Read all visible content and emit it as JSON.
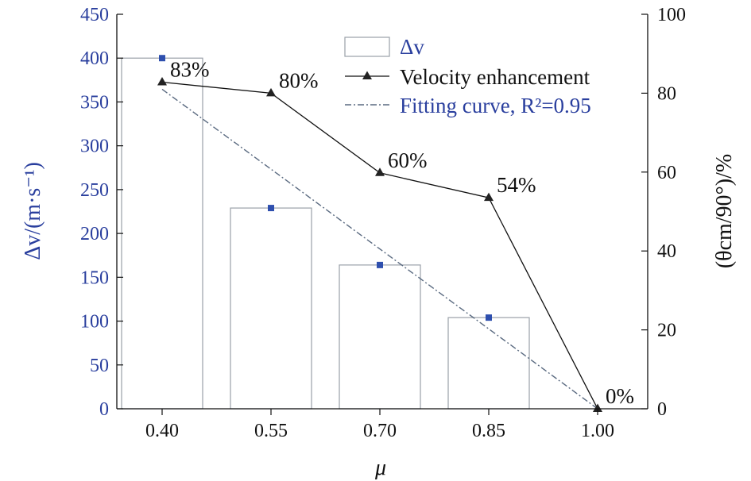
{
  "chart_data": {
    "type": "bar+line",
    "x_axis": {
      "label": "μ",
      "categories": [
        "0.40",
        "0.55",
        "0.70",
        "0.85",
        "1.00"
      ]
    },
    "y_left": {
      "label": "Δv/(m·s⁻¹)",
      "min": 0,
      "max": 450,
      "step": 50,
      "ticks": [
        "0",
        "50",
        "100",
        "150",
        "200",
        "250",
        "300",
        "350",
        "400",
        "450"
      ]
    },
    "y_right": {
      "label": "(θcm/90°)/%",
      "min": 0,
      "max": 100,
      "step": 20,
      "ticks": [
        "0",
        "20",
        "40",
        "60",
        "80",
        "100"
      ]
    },
    "bars": {
      "name": "Δv",
      "axis": "left",
      "values": [
        400,
        229,
        164,
        104,
        null
      ]
    },
    "velocity_enhancement": {
      "name": "Velocity enhancement",
      "axis": "right",
      "values": [
        82.8,
        80.0,
        59.8,
        53.5,
        0
      ],
      "labels": [
        "83%",
        "80%",
        "60%",
        "54%",
        "0%"
      ]
    },
    "fitting_curve": {
      "name": "Fitting curve, R²=0.95",
      "axis": "right",
      "start": 81,
      "end": 0
    },
    "legend": {
      "position": "top-center",
      "entries": [
        "Δv",
        "Velocity enhancement",
        "Fitting curve, R²=0.95"
      ]
    },
    "colors": {
      "blue": "#2a3f9e",
      "marker_blue": "#2e4fae",
      "bar_edge": "#9aa0a8",
      "line": "#111111"
    }
  }
}
